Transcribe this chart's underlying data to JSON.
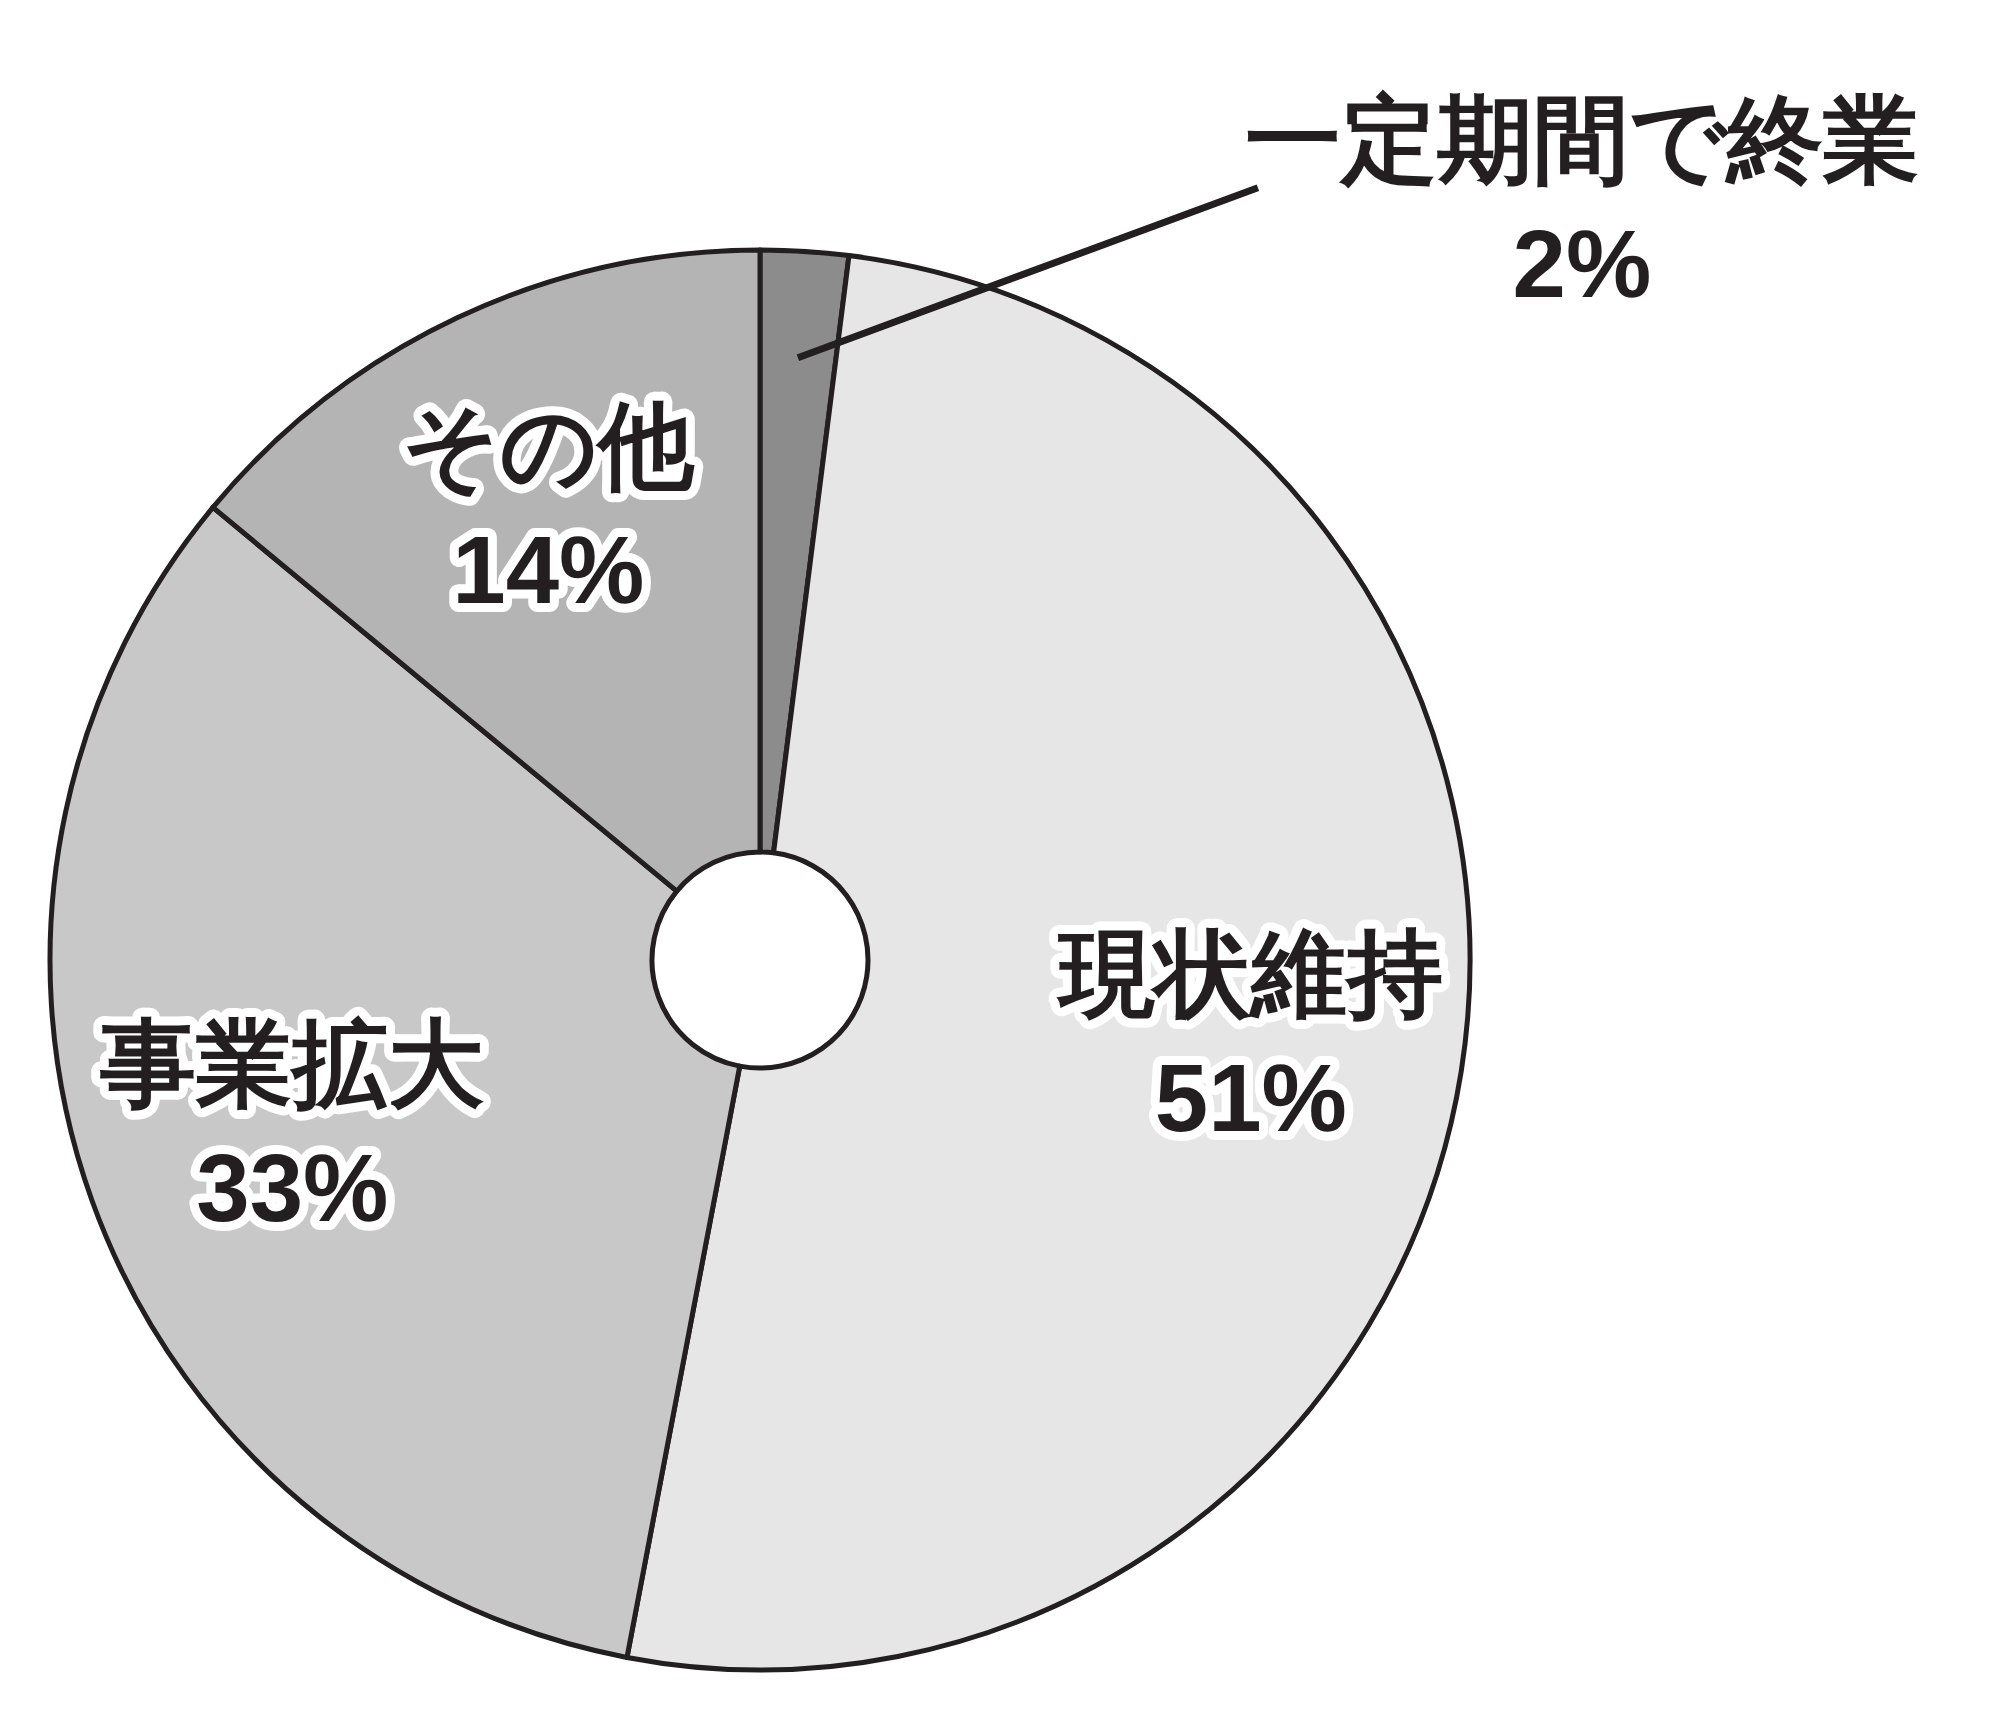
{
  "chart_data": {
    "type": "donut",
    "categories": [
      "一定期間で終業",
      "現状維持",
      "事業拡大",
      "その他"
    ],
    "values": [
      2,
      51,
      33,
      14
    ],
    "value_labels": [
      "2%",
      "51%",
      "33%",
      "14%"
    ],
    "colors": [
      "#8c8c8c",
      "#e6e6e6",
      "#c8c8c8",
      "#b4b4b4"
    ]
  }
}
